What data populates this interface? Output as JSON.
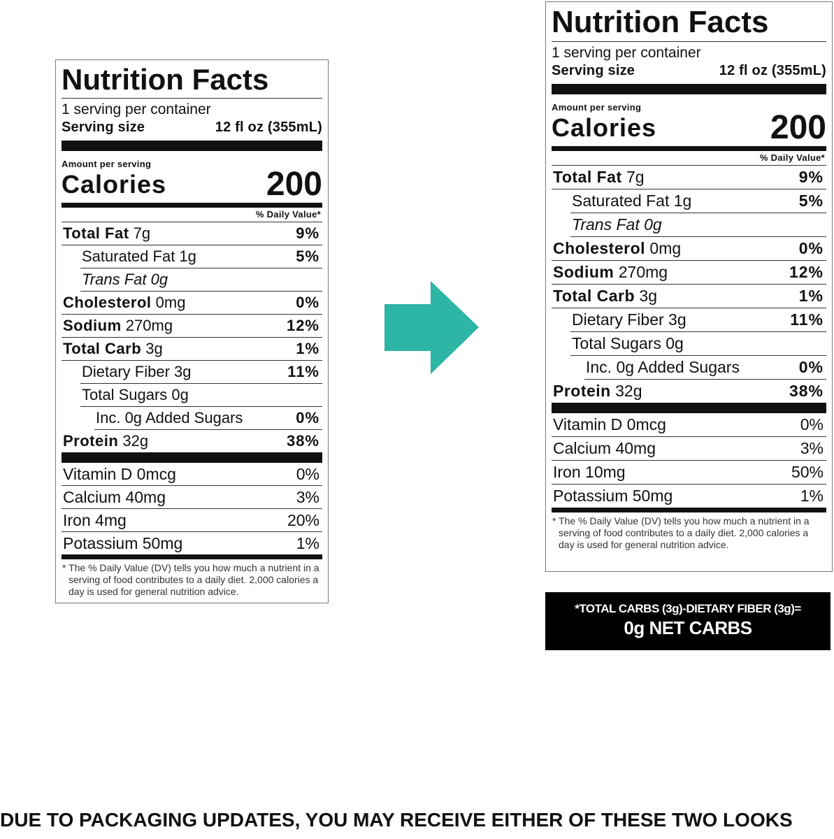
{
  "labels": [
    {
      "title": "Nutrition Facts",
      "servings_per_container": "1 serving per container",
      "serving_size_label": "Serving size",
      "serving_size_value": "12 fl oz (355mL)",
      "amount_per_serving": "Amount per serving",
      "calories_label": "Calories",
      "calories_value": "200",
      "dv_header": "% Daily Value*",
      "nutrients": [
        {
          "bold": "Total Fat",
          "rest": " 7g",
          "dv": "9%",
          "indent": 0
        },
        {
          "bold": "",
          "rest": "Saturated Fat 1g",
          "dv": "5%",
          "indent": 1
        },
        {
          "bold": "",
          "italic": "Trans",
          "rest": " Fat 0g",
          "dv": "",
          "indent": 1
        },
        {
          "bold": "Cholesterol",
          "rest": " 0mg",
          "dv": "0%",
          "indent": 0
        },
        {
          "bold": "Sodium",
          "rest": " 270mg",
          "dv": "12%",
          "indent": 0
        },
        {
          "bold": "Total Carb",
          "rest": " 3g",
          "dv": "1%",
          "indent": 0
        },
        {
          "bold": "",
          "rest": "Dietary Fiber 3g",
          "dv": "11%",
          "indent": 1
        },
        {
          "bold": "",
          "rest": "Total Sugars 0g",
          "dv": "",
          "indent": 1
        },
        {
          "bold": "",
          "rest": "Inc. 0g Added Sugars",
          "dv": "0%",
          "indent": 2
        },
        {
          "bold": "Protein",
          "rest": " 32g",
          "dv": "38%",
          "indent": 0
        }
      ],
      "vitamins": [
        {
          "name": "Vitamin D 0mcg",
          "dv": "0%"
        },
        {
          "name": "Calcium 40mg",
          "dv": "3%"
        },
        {
          "name": "Iron 4mg",
          "dv": "20%"
        },
        {
          "name": "Potassium 50mg",
          "dv": "1%"
        }
      ],
      "footnote": "* The % Daily Value (DV) tells you how much a nutrient in a serving of food contributes to a daily diet. 2,000 calories a day is used for general nutrition advice."
    },
    {
      "title": "Nutrition Facts",
      "servings_per_container": "1 serving per container",
      "serving_size_label": "Serving size",
      "serving_size_value": "12 fl oz (355mL)",
      "amount_per_serving": "Amount per serving",
      "calories_label": "Calories",
      "calories_value": "200",
      "dv_header": "% Daily Value*",
      "nutrients": [
        {
          "bold": "Total Fat",
          "rest": " 7g",
          "dv": "9%",
          "indent": 0
        },
        {
          "bold": "",
          "rest": "Saturated Fat 1g",
          "dv": "5%",
          "indent": 1
        },
        {
          "bold": "",
          "italic": "Trans",
          "rest": " Fat 0g",
          "dv": "",
          "indent": 1
        },
        {
          "bold": "Cholesterol",
          "rest": " 0mg",
          "dv": "0%",
          "indent": 0
        },
        {
          "bold": "Sodium",
          "rest": " 270mg",
          "dv": "12%",
          "indent": 0
        },
        {
          "bold": "Total Carb",
          "rest": " 3g",
          "dv": "1%",
          "indent": 0
        },
        {
          "bold": "",
          "rest": "Dietary Fiber 3g",
          "dv": "11%",
          "indent": 1
        },
        {
          "bold": "",
          "rest": "Total Sugars 0g",
          "dv": "",
          "indent": 1
        },
        {
          "bold": "",
          "rest": "Inc. 0g Added Sugars",
          "dv": "0%",
          "indent": 2
        },
        {
          "bold": "Protein",
          "rest": " 32g",
          "dv": "38%",
          "indent": 0
        }
      ],
      "vitamins": [
        {
          "name": "Vitamin D 0mcg",
          "dv": "0%"
        },
        {
          "name": "Calcium 40mg",
          "dv": "3%"
        },
        {
          "name": "Iron 10mg",
          "dv": "50%"
        },
        {
          "name": "Potassium 50mg",
          "dv": "1%"
        }
      ],
      "footnote": "* The % Daily Value (DV) tells you how much a nutrient in a serving of food contributes to a daily diet. 2,000 calories a day is used for general nutrition advice."
    }
  ],
  "arrow": {
    "icon": "right-arrow-icon",
    "color": "#2db5a5"
  },
  "net_carbs": {
    "line1": "*TOTAL CARBS (3g)-DIETARY FIBER (3g)=",
    "line2": "0g NET CARBS"
  },
  "notice": "DUE TO PACKAGING UPDATES, YOU MAY RECEIVE EITHER OF THESE TWO LOOKS"
}
